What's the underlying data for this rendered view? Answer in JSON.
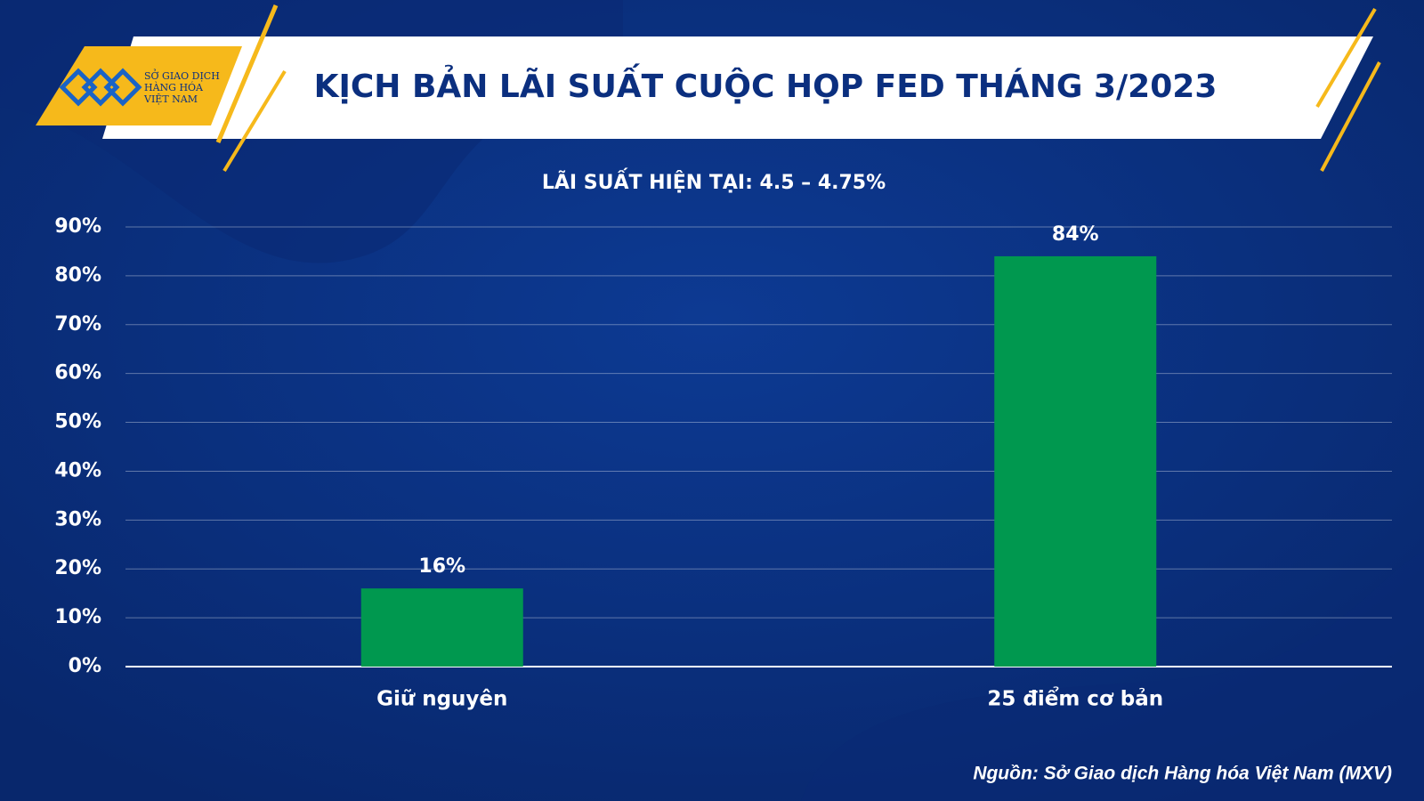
{
  "logo": [
    "SỞ GIAO DỊCH",
    "HÀNG HÓA",
    "VIỆT NAM"
  ],
  "chart_data": {
    "type": "bar",
    "title": "KỊCH BẢN LÃI SUẤT CUỘC HỌP FED THÁNG 3/2023",
    "subtitle": "LÃI SUẤT HIỆN TẠI: 4.5 – 4.75%",
    "categories": [
      "Giữ nguyên",
      "25 điểm cơ bản"
    ],
    "values": [
      16,
      84
    ],
    "value_labels": [
      "16%",
      "84%"
    ],
    "color": "#00984f",
    "ylim": [
      0,
      90
    ],
    "yticks": [
      {
        "value": 0,
        "label": "0%"
      },
      {
        "value": 10,
        "label": "10%"
      },
      {
        "value": 20,
        "label": "20%"
      },
      {
        "value": 30,
        "label": "30%"
      },
      {
        "value": 40,
        "label": "40%"
      },
      {
        "value": 50,
        "label": "50%"
      },
      {
        "value": 60,
        "label": "60%"
      },
      {
        "value": 70,
        "label": "70%"
      },
      {
        "value": 80,
        "label": "80%"
      },
      {
        "value": 90,
        "label": "90%"
      }
    ],
    "grid": true,
    "source": "Nguồn: Sở Giao dịch Hàng hóa Việt Nam (MXV)"
  }
}
